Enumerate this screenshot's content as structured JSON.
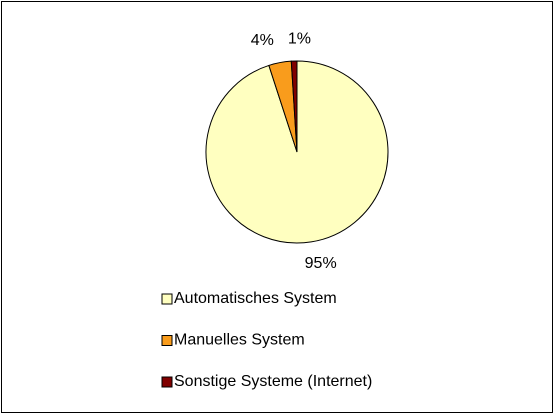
{
  "chart_data": {
    "type": "pie",
    "categories": [
      "Automatisches System",
      "Manuelles System",
      "Sonstige Systeme (Internet)"
    ],
    "values": [
      95,
      4,
      1
    ],
    "value_labels": [
      "95%",
      "4%",
      "1%"
    ],
    "colors": [
      "#ffffc0",
      "#f99c1c",
      "#800000"
    ],
    "legend": "bottom"
  }
}
